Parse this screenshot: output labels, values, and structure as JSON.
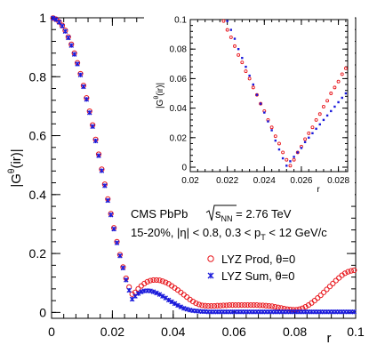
{
  "chart_data": [
    {
      "type": "scatter",
      "title": "",
      "xlabel": "r",
      "ylabel": "|Gθ(ir)|",
      "xlim": [
        0,
        0.1
      ],
      "ylim": [
        -0.02,
        1.0
      ],
      "xticks": [
        0,
        0.02,
        0.04,
        0.06,
        0.08,
        0.1
      ],
      "xtick_labels": [
        "0",
        "0.02",
        "0.04",
        "0.06",
        "0.08",
        "0.1"
      ],
      "yticks": [
        0,
        0.2,
        0.4,
        0.6,
        0.8,
        1
      ],
      "ytick_labels": [
        "0",
        "0.2",
        "0.4",
        "0.6",
        "0.8",
        "1"
      ],
      "grid": false,
      "legend_placement": "bottom-right",
      "annotations": {
        "line1_prefix": "CMS   PbPb",
        "line1_sub": "NN",
        "line1_suffix": " = 2.76 TeV",
        "line2_a": "15-20%,  |η| < 0.8,  0.3 < p",
        "line2_sub": "T",
        "line2_b": " < 12 GeV/c"
      },
      "series": [
        {
          "name": "LYZ Prod, θ=0",
          "marker": "open-circle",
          "color": "#e8161c",
          "x": [
            0.0005,
            0.0015,
            0.0025,
            0.0035,
            0.0045,
            0.0055,
            0.0065,
            0.0075,
            0.0085,
            0.0095,
            0.0105,
            0.0115,
            0.0125,
            0.0135,
            0.0145,
            0.0155,
            0.0165,
            0.0175,
            0.0185,
            0.0195,
            0.0205,
            0.0215,
            0.0225,
            0.0235,
            0.0245,
            0.0255,
            0.0265,
            0.0275,
            0.0285,
            0.0295,
            0.0305,
            0.0315,
            0.0325,
            0.0335,
            0.0345,
            0.0355,
            0.0365,
            0.0375,
            0.0385,
            0.0395,
            0.0405,
            0.0415,
            0.0425,
            0.0435,
            0.0445,
            0.0455,
            0.0465,
            0.0475,
            0.0485,
            0.0495,
            0.0505,
            0.0515,
            0.0525,
            0.0535,
            0.0545,
            0.0555,
            0.0565,
            0.0575,
            0.0585,
            0.0595,
            0.0605,
            0.0615,
            0.0625,
            0.0635,
            0.0645,
            0.0655,
            0.0665,
            0.0675,
            0.0685,
            0.0695,
            0.0705,
            0.0715,
            0.0725,
            0.0735,
            0.0745,
            0.0755,
            0.0765,
            0.0775,
            0.0785,
            0.0795,
            0.0805,
            0.0815,
            0.0825,
            0.0835,
            0.0845,
            0.0855,
            0.0865,
            0.0875,
            0.0885,
            0.0895,
            0.0905,
            0.0915,
            0.0925,
            0.0935,
            0.0945,
            0.0955,
            0.0965,
            0.0975,
            0.0985,
            0.0995
          ],
          "y": [
            0.999,
            0.995,
            0.986,
            0.974,
            0.957,
            0.935,
            0.91,
            0.88,
            0.847,
            0.81,
            0.77,
            0.728,
            0.683,
            0.636,
            0.587,
            0.537,
            0.486,
            0.435,
            0.385,
            0.335,
            0.287,
            0.24,
            0.196,
            0.154,
            0.116,
            0.086,
            0.062,
            0.068,
            0.08,
            0.09,
            0.098,
            0.104,
            0.108,
            0.11,
            0.11,
            0.109,
            0.106,
            0.102,
            0.097,
            0.09,
            0.083,
            0.076,
            0.068,
            0.06,
            0.052,
            0.044,
            0.037,
            0.031,
            0.027,
            0.024,
            0.023,
            0.022,
            0.022,
            0.022,
            0.023,
            0.023,
            0.024,
            0.024,
            0.025,
            0.025,
            0.025,
            0.025,
            0.025,
            0.025,
            0.025,
            0.025,
            0.025,
            0.025,
            0.024,
            0.024,
            0.023,
            0.022,
            0.021,
            0.019,
            0.017,
            0.015,
            0.013,
            0.011,
            0.01,
            0.009,
            0.009,
            0.011,
            0.014,
            0.019,
            0.025,
            0.032,
            0.04,
            0.049,
            0.058,
            0.068,
            0.078,
            0.088,
            0.098,
            0.108,
            0.117,
            0.126,
            0.133,
            0.138,
            0.141,
            0.143
          ]
        },
        {
          "name": "LYZ Sum, θ=0",
          "marker": "star",
          "color": "#1a1adb",
          "x": [
            0.0005,
            0.0015,
            0.0025,
            0.0035,
            0.0045,
            0.0055,
            0.0065,
            0.0075,
            0.0085,
            0.0095,
            0.0105,
            0.0115,
            0.0125,
            0.0135,
            0.0145,
            0.0155,
            0.0165,
            0.0175,
            0.0185,
            0.0195,
            0.0205,
            0.0215,
            0.0225,
            0.0235,
            0.0245,
            0.0255,
            0.0265,
            0.0275,
            0.0285,
            0.0295,
            0.0305,
            0.0315,
            0.0325,
            0.0335,
            0.0345,
            0.0355,
            0.0365,
            0.0375,
            0.0385,
            0.0395,
            0.0405,
            0.0415,
            0.0425,
            0.0435,
            0.0445,
            0.0455,
            0.0465,
            0.0475,
            0.0485,
            0.0495,
            0.0505,
            0.0515,
            0.0525,
            0.0535,
            0.0545,
            0.0555,
            0.0565,
            0.0575,
            0.0585,
            0.0595,
            0.0605,
            0.0615,
            0.0625,
            0.0635,
            0.0645,
            0.0655,
            0.0665,
            0.0675,
            0.0685,
            0.0695,
            0.0705,
            0.0715,
            0.0725,
            0.0735,
            0.0745,
            0.0755,
            0.0765,
            0.0775,
            0.0785,
            0.0795,
            0.0805,
            0.0815,
            0.0825,
            0.0835,
            0.0845,
            0.0855,
            0.0865,
            0.0875,
            0.0885,
            0.0895,
            0.0905,
            0.0915,
            0.0925,
            0.0935,
            0.0945,
            0.0955,
            0.0965,
            0.0975,
            0.0985,
            0.0995
          ],
          "y": [
            0.999,
            0.994,
            0.985,
            0.972,
            0.954,
            0.932,
            0.906,
            0.876,
            0.843,
            0.806,
            0.766,
            0.723,
            0.678,
            0.631,
            0.582,
            0.532,
            0.481,
            0.43,
            0.38,
            0.331,
            0.283,
            0.236,
            0.192,
            0.151,
            0.11,
            0.075,
            0.045,
            0.055,
            0.064,
            0.07,
            0.073,
            0.074,
            0.073,
            0.07,
            0.066,
            0.061,
            0.055,
            0.049,
            0.042,
            0.036,
            0.03,
            0.024,
            0.019,
            0.014,
            0.011,
            0.008,
            0.006,
            0.005,
            0.004,
            0.003,
            0.003,
            0.002,
            0.002,
            0.002,
            0.002,
            0.002,
            0.002,
            0.002,
            0.002,
            0.002,
            0.002,
            0.002,
            0.002,
            0.002,
            0.002,
            0.002,
            0.002,
            0.002,
            0.002,
            0.002,
            0.002,
            0.002,
            0.002,
            0.002,
            0.002,
            0.002,
            0.002,
            0.002,
            0.002,
            0.002,
            0.002,
            0.002,
            0.002,
            0.002,
            0.002,
            0.002,
            0.002,
            0.002,
            0.002,
            0.002,
            0.002,
            0.002,
            0.002,
            0.002,
            0.002,
            0.002,
            0.002,
            0.002,
            0.002,
            0.002
          ]
        }
      ]
    },
    {
      "type": "scatter",
      "title": "",
      "xlabel": "r",
      "ylabel": "|Gθ(ir)|",
      "xlim": [
        0.02,
        0.0285
      ],
      "ylim": [
        -0.003,
        0.1
      ],
      "xticks": [
        0.02,
        0.022,
        0.024,
        0.026,
        0.028
      ],
      "xtick_labels": [
        "0.02",
        "0.022",
        "0.024",
        "0.026",
        "0.028"
      ],
      "yticks": [
        0,
        0.02,
        0.04,
        0.06,
        0.08,
        0.1
      ],
      "ytick_labels": [
        "0",
        "0.02",
        "0.04",
        "0.06",
        "0.08",
        "0.1"
      ],
      "grid": false,
      "series": [
        {
          "name": "LYZ Prod, θ=0",
          "marker": "open-circle",
          "color": "#e8161c",
          "x": [
            0.0218,
            0.022,
            0.0222,
            0.0224,
            0.0226,
            0.0228,
            0.023,
            0.0232,
            0.0234,
            0.0236,
            0.0238,
            0.024,
            0.0242,
            0.0244,
            0.0246,
            0.0248,
            0.025,
            0.0252,
            0.0254,
            0.0256,
            0.0258,
            0.026,
            0.0262,
            0.0264,
            0.0266,
            0.0268,
            0.027,
            0.0272,
            0.0274,
            0.0276,
            0.0278,
            0.028,
            0.0282,
            0.0284
          ],
          "y": [
            0.099,
            0.093,
            0.088,
            0.082,
            0.076,
            0.071,
            0.065,
            0.06,
            0.054,
            0.049,
            0.043,
            0.038,
            0.032,
            0.027,
            0.021,
            0.016,
            0.01,
            0.005,
            0.001,
            0.005,
            0.01,
            0.014,
            0.019,
            0.023,
            0.027,
            0.032,
            0.036,
            0.041,
            0.045,
            0.05,
            0.054,
            0.058,
            0.063,
            0.067
          ]
        },
        {
          "name": "LYZ Sum, θ=0",
          "marker": "star",
          "color": "#1a1adb",
          "x": [
            0.022,
            0.0222,
            0.0224,
            0.0226,
            0.0228,
            0.023,
            0.0232,
            0.0234,
            0.0236,
            0.0238,
            0.024,
            0.0242,
            0.0244,
            0.0246,
            0.0248,
            0.025,
            0.0252,
            0.0254,
            0.0256,
            0.0258,
            0.026,
            0.0262,
            0.0264,
            0.0266,
            0.0268,
            0.027,
            0.0272,
            0.0274,
            0.0276,
            0.0278,
            0.028,
            0.0282,
            0.0284
          ],
          "y": [
            0.099,
            0.093,
            0.087,
            0.08,
            0.074,
            0.068,
            0.062,
            0.056,
            0.049,
            0.043,
            0.037,
            0.031,
            0.025,
            0.018,
            0.012,
            0.006,
            0.001,
            0.004,
            0.007,
            0.01,
            0.013,
            0.017,
            0.02,
            0.023,
            0.026,
            0.029,
            0.032,
            0.035,
            0.038,
            0.041,
            0.044,
            0.047,
            0.05
          ]
        }
      ]
    }
  ]
}
